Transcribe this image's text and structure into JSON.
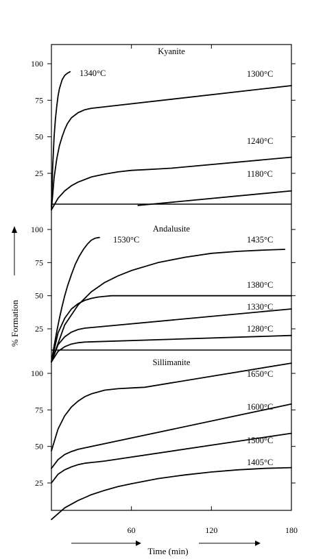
{
  "chart_data": {
    "type": "line",
    "xlabel": "Time (min)",
    "ylabel": "% Formation",
    "x_ticks": [
      60,
      120,
      180
    ],
    "xlim": [
      0,
      180
    ],
    "panels": [
      {
        "title": "Kyanite",
        "y_ticks": [
          25,
          50,
          75,
          100
        ],
        "ylim": [
          0,
          105
        ],
        "series": [
          {
            "name": "1340°C",
            "x": [
              0,
              1,
              2,
              3,
              4,
              5,
              6,
              8,
              10,
              12,
              14
            ],
            "y": [
              2,
              30,
              50,
              62,
              71,
              78,
              83,
              89,
              92,
              93.5,
              94.5
            ]
          },
          {
            "name": "1300°C",
            "x": [
              0,
              2,
              4,
              6,
              8,
              10,
              12,
              15,
              20,
              25,
              30,
              35,
              180
            ],
            "y": [
              0,
              22,
              35,
              44,
              50,
              55,
              59,
              63,
              66.5,
              68.5,
              69.5,
              70,
              85
            ]
          },
          {
            "name": "1240°C",
            "x": [
              0,
              5,
              10,
              15,
              20,
              30,
              40,
              50,
              60,
              70,
              80,
              90,
              180
            ],
            "y": [
              0,
              8,
              13,
              16.5,
              19,
              22.5,
              24.5,
              26,
              27,
              27.5,
              28,
              28.5,
              36
            ]
          },
          {
            "name": "1180°C",
            "x": [
              65,
              180
            ],
            "y": [
              3,
              13
            ]
          }
        ]
      },
      {
        "title": "Andalusite",
        "y_ticks": [
          25,
          50,
          75,
          100
        ],
        "ylim": [
          0,
          105
        ],
        "series": [
          {
            "name": "1530°C",
            "x": [
              0,
              2,
              4,
              6,
              8,
              10,
              12,
              15,
              18,
              21,
              24,
              27,
              30,
              33,
              36
            ],
            "y": [
              0,
              12,
              23,
              33,
              42,
              50,
              57,
              66,
              74,
              80,
              85,
              89,
              92,
              93.5,
              94
            ]
          },
          {
            "name": "1435°C",
            "x": [
              0,
              10,
              20,
              30,
              40,
              50,
              60,
              80,
              100,
              120,
              140,
              160,
              175
            ],
            "y": [
              0,
              28,
              43,
              53,
              60,
              65,
              69,
              75,
              79,
              82,
              83.5,
              84.5,
              85
            ]
          },
          {
            "name": "1380°C",
            "x": [
              0,
              5,
              10,
              15,
              20,
              25,
              30,
              35,
              40,
              45,
              50,
              55,
              180
            ],
            "y": [
              0,
              22,
              33,
              40,
              44,
              46.5,
              48,
              49,
              49.5,
              50,
              50,
              50,
              50
            ]
          },
          {
            "name": "1330°C",
            "x": [
              0,
              5,
              10,
              15,
              20,
              25,
              30,
              180
            ],
            "y": [
              0,
              13,
              19,
              22.5,
              24.5,
              25.5,
              26,
              40
            ]
          },
          {
            "name": "1280°C",
            "x": [
              0,
              5,
              10,
              15,
              20,
              25,
              180
            ],
            "y": [
              0,
              8,
              11.5,
              13.5,
              14.5,
              15,
              20
            ]
          }
        ]
      },
      {
        "title": "Sillimanite",
        "y_ticks": [
          25,
          50,
          75,
          100
        ],
        "ylim": [
          0,
          105
        ],
        "series": [
          {
            "name": "1650°C",
            "x": [
              0,
              5,
              10,
              15,
              20,
              25,
              30,
              40,
              50,
              60,
              70,
              180
            ],
            "y": [
              47,
              62,
              71,
              77,
              81,
              84,
              86,
              88.5,
              89.5,
              90,
              90.5,
              107
            ]
          },
          {
            "name": "1600°C",
            "x": [
              0,
              5,
              10,
              15,
              20,
              25,
              180
            ],
            "y": [
              35,
              41,
              44.5,
              46.5,
              48,
              49,
              79
            ]
          },
          {
            "name": "1500°C",
            "x": [
              0,
              5,
              10,
              15,
              20,
              25,
              30,
              35,
              40,
              180
            ],
            "y": [
              25,
              31,
              34,
              36,
              37.5,
              38.5,
              39,
              39.5,
              40,
              59
            ]
          },
          {
            "name": "1405°C",
            "x": [
              0,
              10,
              20,
              30,
              40,
              50,
              60,
              80,
              100,
              120,
              140,
              160,
              180
            ],
            "y": [
              0,
              8,
              13,
              17,
              20,
              22.5,
              24.5,
              28,
              30.5,
              32.5,
              34,
              35,
              35.5
            ]
          }
        ]
      }
    ]
  }
}
